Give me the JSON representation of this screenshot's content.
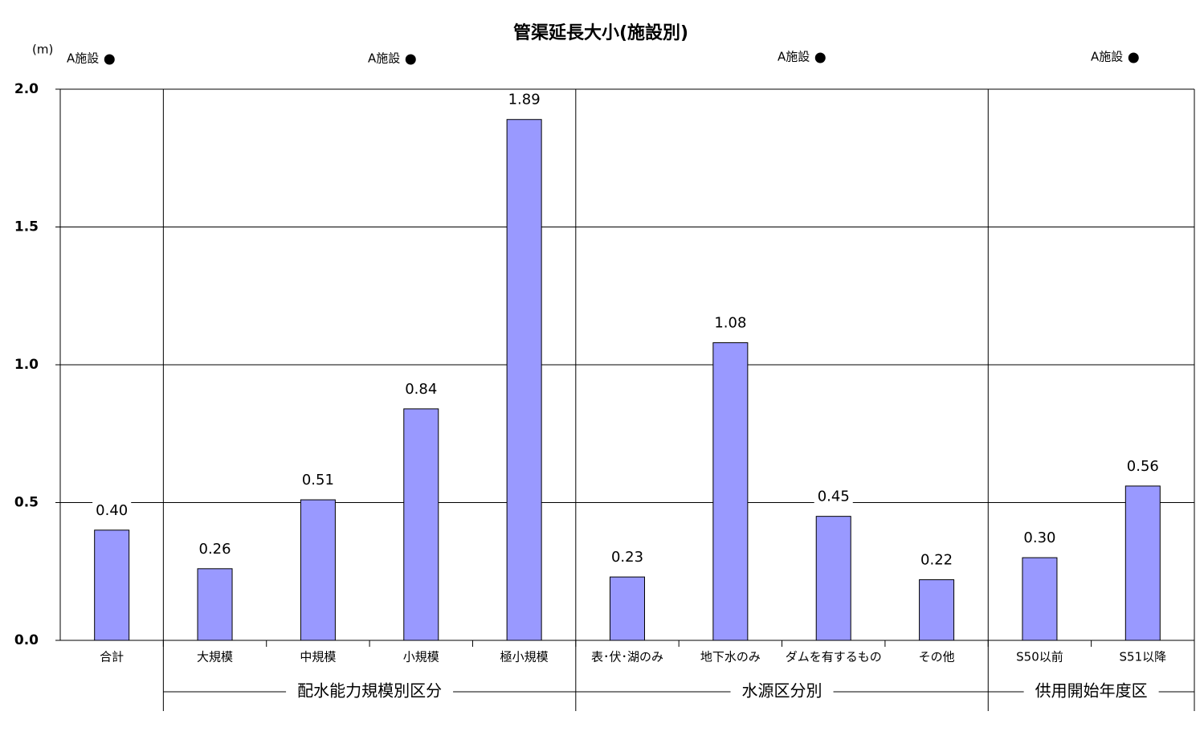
{
  "chart_data": {
    "type": "bar",
    "title": "管渠延長大小(施設別)",
    "y_label": "(m)",
    "categories": [
      "合計",
      "大規模",
      "中規模",
      "小規模",
      "極小規模",
      "表･伏･湖のみ",
      "地下水のみ",
      "ダムを有するもの",
      "その他",
      "S50以前",
      "S51以降"
    ],
    "values": [
      0.4,
      0.26,
      0.51,
      0.84,
      1.89,
      0.23,
      1.08,
      0.45,
      0.22,
      0.3,
      0.56
    ],
    "value_labels": [
      "0.40",
      "0.26",
      "0.51",
      "0.84",
      "1.89",
      "0.23",
      "1.08",
      "0.45",
      "0.22",
      "0.30",
      "0.56"
    ],
    "color": "#9999ff",
    "ylim": [
      0,
      2
    ],
    "yticks": [
      {
        "value": 0,
        "label": "0.0"
      },
      0.5,
      {
        "value": 1,
        "label": "1.0"
      },
      1.5,
      {
        "value": 2,
        "label": "2.0"
      }
    ],
    "grid": true,
    "groups": [
      "配水能力規模別区分",
      "水源区分別",
      "供用開始年度区"
    ],
    "annotations": [
      "A施設",
      "A施設",
      "A施設",
      "A施設"
    ]
  }
}
